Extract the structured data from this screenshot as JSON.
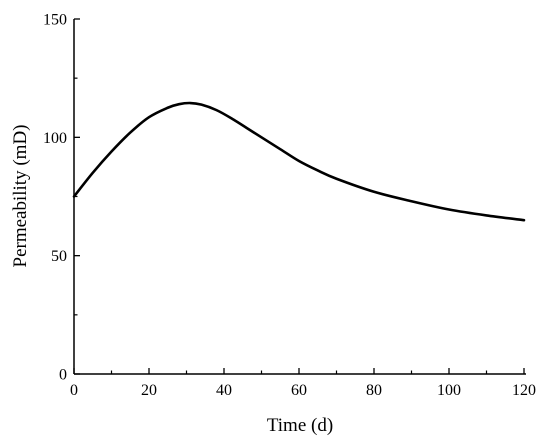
{
  "chart_data": {
    "type": "line",
    "title": "",
    "xlabel": "Time (d)",
    "ylabel": "Permeability (mD)",
    "xlim": [
      0,
      120
    ],
    "ylim": [
      0,
      150
    ],
    "x_ticks": [
      "0",
      "20",
      "40",
      "60",
      "80",
      "100",
      "120"
    ],
    "y_ticks": [
      "0",
      "50",
      "100",
      "150"
    ],
    "grid": false,
    "legend": "none",
    "line_color": "#000000",
    "series": [
      {
        "x": [
          0,
          5,
          10,
          15,
          20,
          25,
          28,
          31,
          34,
          38,
          42,
          48,
          55,
          60,
          65,
          70,
          80,
          90,
          100,
          110,
          120
        ],
        "y": [
          75,
          85,
          94,
          102,
          108.5,
          112.5,
          114,
          114.5,
          113.8,
          111.5,
          108,
          102,
          95,
          90,
          86,
          82.5,
          77,
          73,
          69.5,
          67,
          65
        ]
      }
    ]
  }
}
